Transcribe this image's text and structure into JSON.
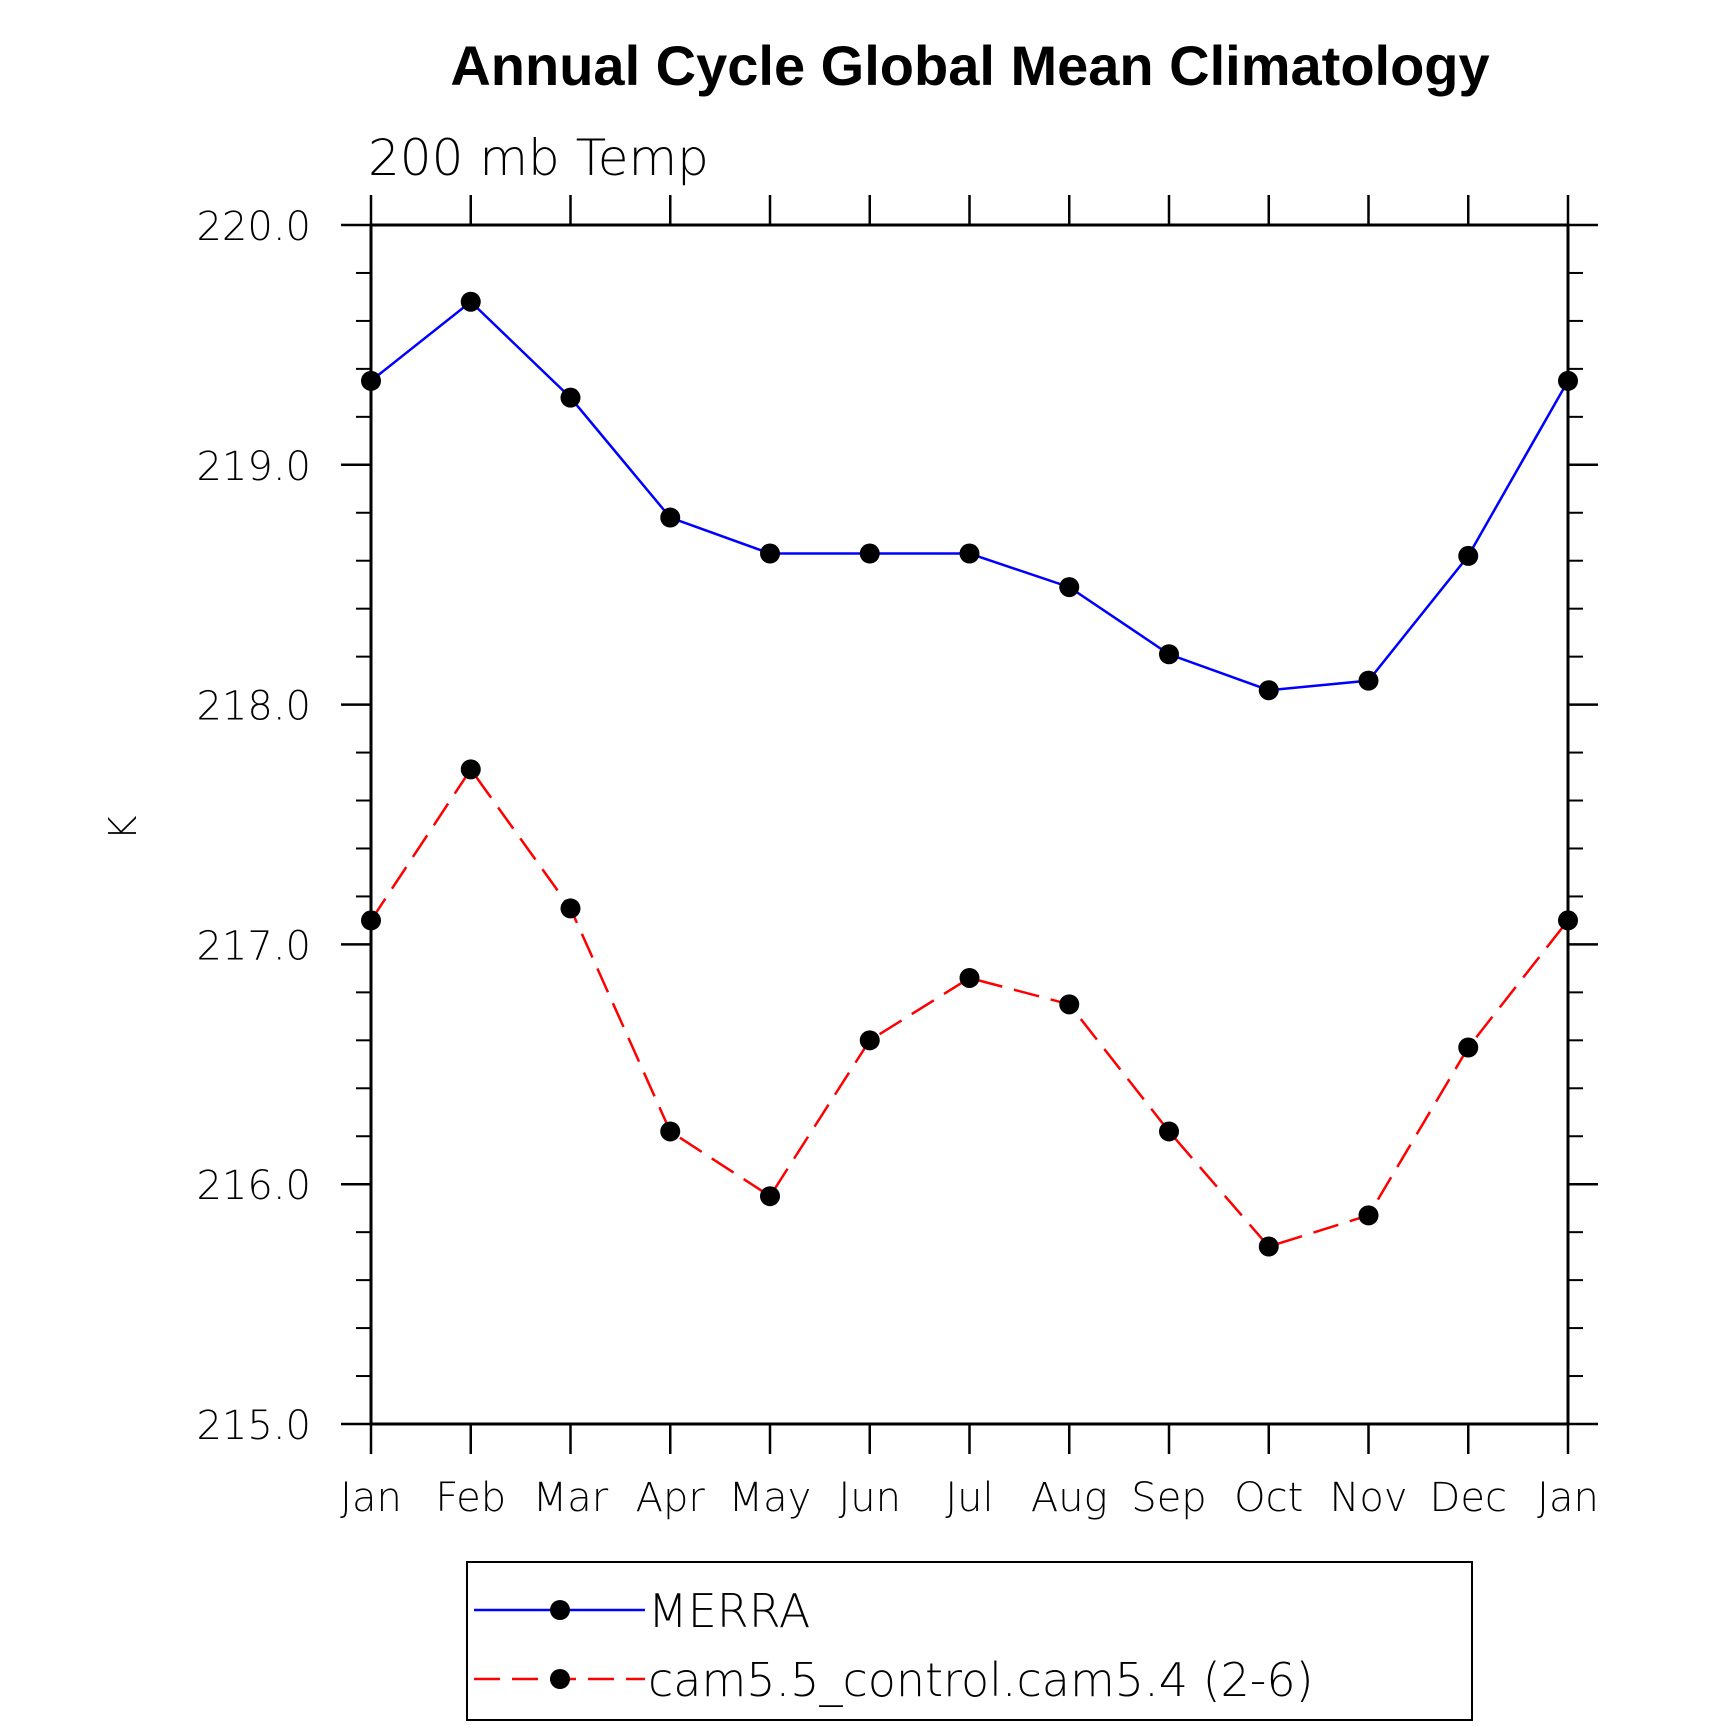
{
  "chart_data": {
    "type": "line",
    "title": "Annual Cycle Global Mean Climatology",
    "subtitle": "200 mb Temp",
    "ylabel": "K",
    "xlabel": "",
    "categories": [
      "Jan",
      "Feb",
      "Mar",
      "Apr",
      "May",
      "Jun",
      "Jul",
      "Aug",
      "Sep",
      "Oct",
      "Nov",
      "Dec",
      "Jan"
    ],
    "ylim": [
      215.0,
      220.0
    ],
    "yticks": [
      "215.0",
      "216.0",
      "217.0",
      "218.0",
      "219.0",
      "220.0"
    ],
    "grid": false,
    "legend_position": "bottom",
    "series": [
      {
        "name": "MERRA",
        "color": "#0000ff",
        "dash": "solid",
        "marker": "circle",
        "values": [
          219.35,
          219.68,
          219.28,
          218.78,
          218.63,
          218.63,
          218.63,
          218.49,
          218.21,
          218.06,
          218.1,
          218.62,
          219.35
        ]
      },
      {
        "name": "cam5.5_control.cam5.4 (2-6)",
        "color": "#ff0000",
        "dash": "dashed",
        "marker": "circle",
        "values": [
          217.1,
          217.73,
          217.15,
          216.22,
          215.95,
          216.6,
          216.86,
          216.75,
          216.22,
          215.74,
          215.87,
          216.57,
          217.1
        ]
      }
    ]
  }
}
